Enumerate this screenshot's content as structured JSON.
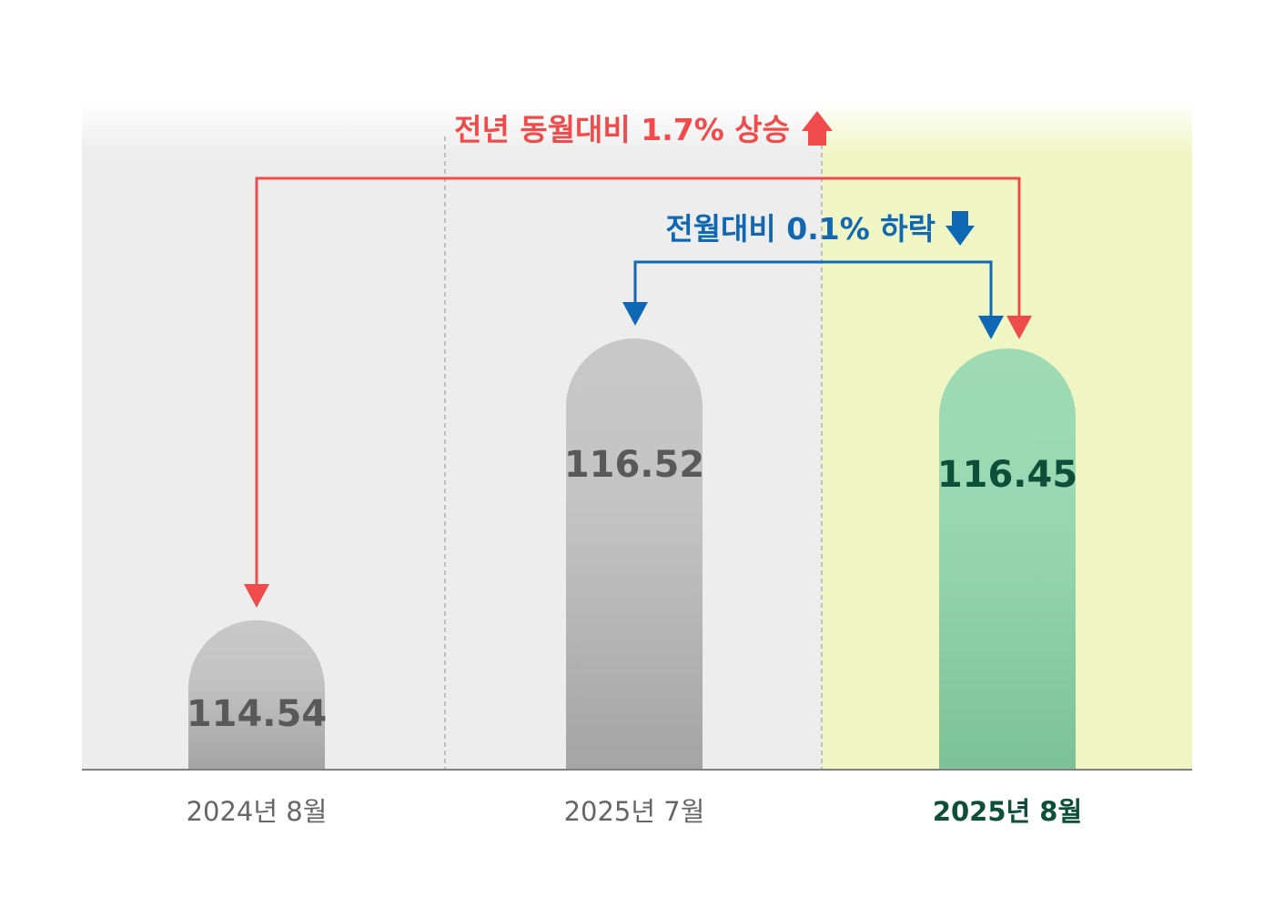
{
  "chart_data": {
    "type": "bar",
    "categories": [
      "2024년 8월",
      "2025년 7월",
      "2025년 8월"
    ],
    "values": [
      114.54,
      116.52,
      116.45
    ],
    "value_labels": [
      "114.54",
      "116.52",
      "116.45"
    ],
    "title": "",
    "xlabel": "",
    "ylabel": "",
    "highlight_index": 2,
    "grid": false,
    "annotations": {
      "yoy_text": "전년 동월대비 1.7% 상승",
      "mom_text": "전월대비 0.1% 하락"
    }
  },
  "colors": {
    "panel_gray": "#ededed",
    "panel_highlight": "#eff6c4",
    "bar_gray_top": "#c8c8c8",
    "bar_gray_bottom": "#a4a4a4",
    "bar_green_top": "#9edbb4",
    "bar_green_bottom": "#7dc196",
    "value_gray": "#595959",
    "value_green": "#0d4f38",
    "category_gray": "#666666",
    "category_green": "#0d4f38",
    "yoy_red": "#f04b4b",
    "mom_blue": "#1068b4",
    "baseline": "#808080"
  }
}
